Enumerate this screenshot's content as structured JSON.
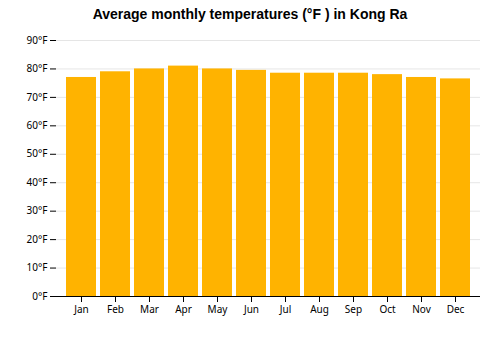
{
  "chart_data": {
    "type": "bar",
    "title": "Average monthly temperatures (°F ) in Kong Ra",
    "categories": [
      "Jan",
      "Feb",
      "Mar",
      "Apr",
      "May",
      "Jun",
      "Jul",
      "Aug",
      "Sep",
      "Oct",
      "Nov",
      "Dec"
    ],
    "values": [
      77,
      79,
      80,
      81,
      80,
      79.5,
      78.5,
      78.5,
      78.5,
      78,
      77,
      76.5
    ],
    "color": "#FFB300",
    "ylim": [
      0,
      90
    ],
    "yticks": [
      {
        "value": 0,
        "label": "0°F"
      },
      {
        "value": 10,
        "label": "10°F"
      },
      {
        "value": 20,
        "label": "20°F"
      },
      {
        "value": 30,
        "label": "30°F"
      },
      {
        "value": 40,
        "label": "40°F"
      },
      {
        "value": 50,
        "label": "50°F"
      },
      {
        "value": 60,
        "label": "60°F"
      },
      {
        "value": 70,
        "label": "70°F"
      },
      {
        "value": 80,
        "label": "80°F"
      },
      {
        "value": 90,
        "label": "90°F"
      }
    ],
    "grid": true
  }
}
